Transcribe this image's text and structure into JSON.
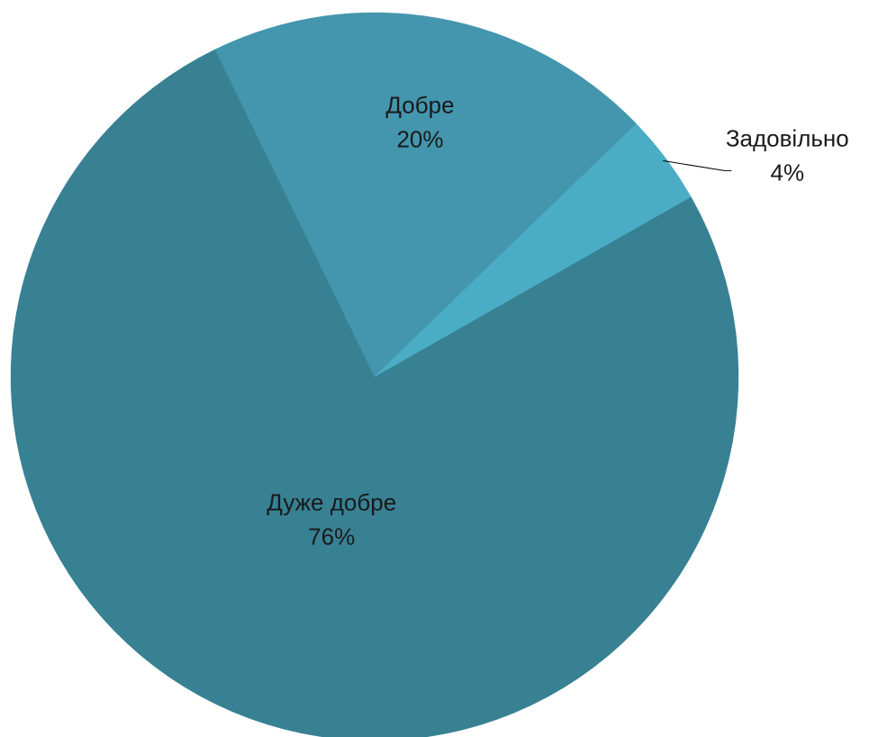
{
  "chart_data": {
    "type": "pie",
    "title": "",
    "slices": [
      {
        "label": "Дуже добре",
        "value": 76,
        "percent_label": "76%",
        "color": "#378193"
      },
      {
        "label": "Добре",
        "value": 20,
        "percent_label": "20%",
        "color": "#4396AD"
      },
      {
        "label": "Задовільно",
        "value": 4,
        "percent_label": "4%",
        "color": "#4BACC6"
      }
    ],
    "legend": "none",
    "data_labels": "category and percentage"
  }
}
